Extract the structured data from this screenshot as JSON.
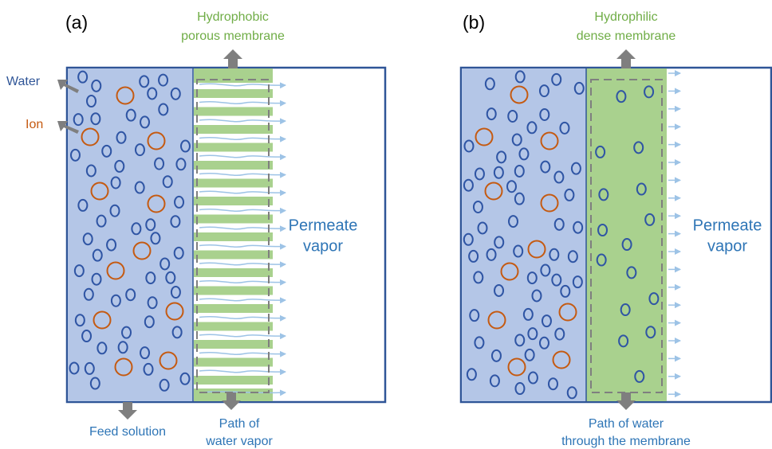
{
  "panels": [
    {
      "label": "(a)",
      "membrane_label": [
        "Hydrophobic",
        "porous membrane"
      ],
      "water_label": "Water",
      "ion_label": "Ion",
      "permeate_label": [
        "Permeate",
        "vapor"
      ],
      "feed_label": "Feed solution",
      "path_label": [
        "Path of",
        "water vapor"
      ]
    },
    {
      "label": "(b)",
      "membrane_label": [
        "Hydrophilic",
        "dense membrane"
      ],
      "permeate_label": [
        "Permeate",
        "vapor"
      ],
      "path_label": [
        "Path of water",
        "through the membrane"
      ]
    }
  ]
}
